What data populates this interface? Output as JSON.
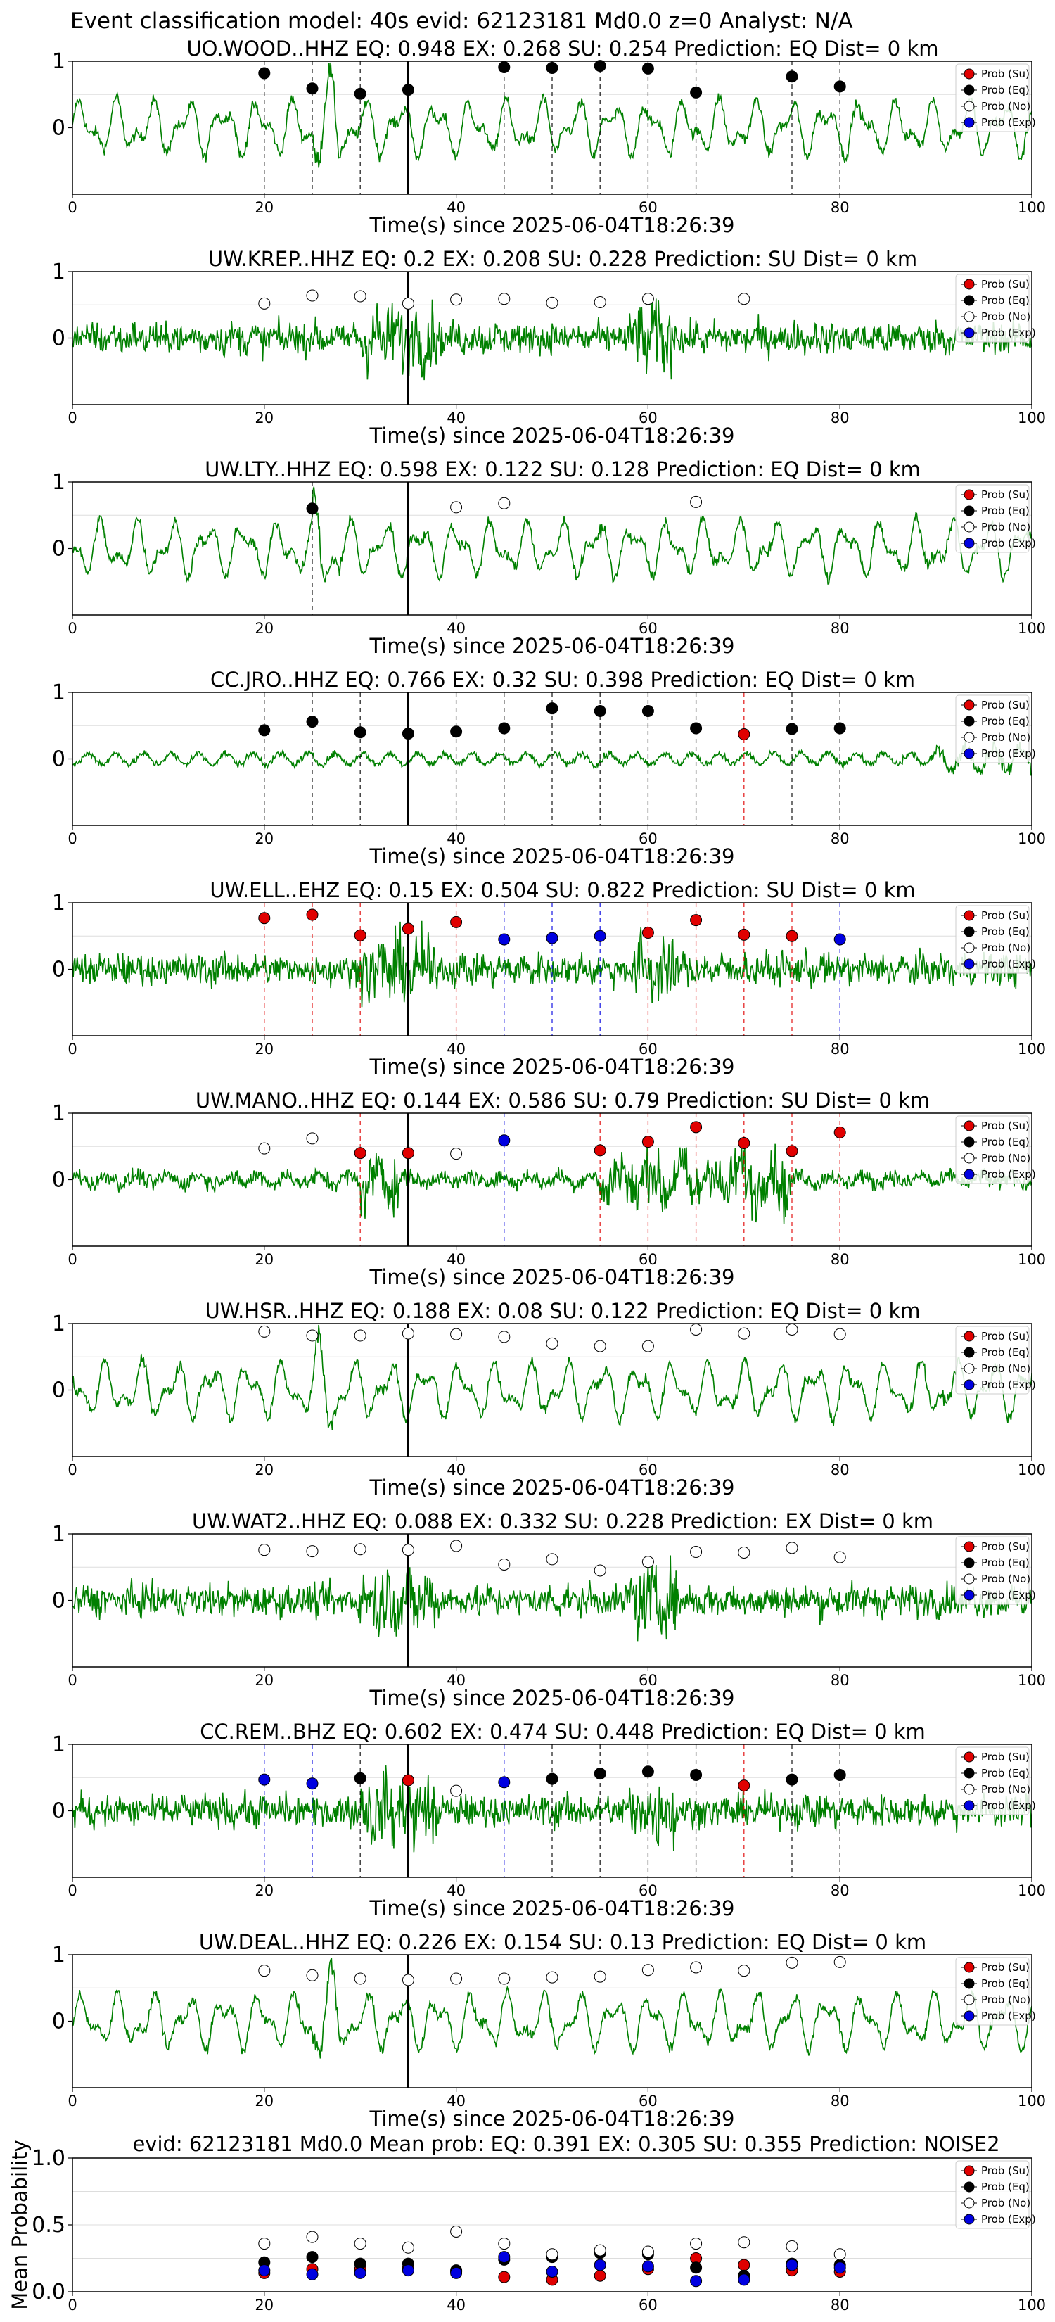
{
  "figure_title": "Event classification model: 40s evid: 62123181 Md0.0 z=0 Analyst: N/A",
  "legend_labels": [
    "Prob (Su)",
    "Prob (Eq)",
    "Prob (No)",
    "Prob (Exp)"
  ],
  "colors": {
    "su": "#e00000",
    "eq": "#000000",
    "no": "#ffffff",
    "exp": "#0000e0",
    "trace": "#008000",
    "grid": "#dddddd"
  },
  "chart_data": [
    {
      "type": "line",
      "title": "UO.WOOD..HHZ    EQ: 0.948   EX: 0.268   SU: 0.254   Prediction: EQ    Dist= 0 km",
      "xlabel": "Time(s) since 2025-06-04T18:26:39",
      "xlim": [
        0,
        100
      ],
      "ylim": [
        -1,
        1
      ],
      "x_ticks": [
        "0",
        "20",
        "40",
        "60",
        "80",
        "100"
      ],
      "y_ticks": [
        "1",
        "0"
      ],
      "pick_time": 35,
      "trace_style": "lowfreq",
      "windows": [
        {
          "t": 20,
          "cls": "eq",
          "p": 0.82
        },
        {
          "t": 25,
          "cls": "eq",
          "p": 0.59
        },
        {
          "t": 30,
          "cls": "eq",
          "p": 0.51
        },
        {
          "t": 35,
          "cls": "eq",
          "p": 0.57
        },
        {
          "t": 45,
          "cls": "eq",
          "p": 0.91
        },
        {
          "t": 50,
          "cls": "eq",
          "p": 0.9
        },
        {
          "t": 55,
          "cls": "eq",
          "p": 0.93
        },
        {
          "t": 60,
          "cls": "eq",
          "p": 0.89
        },
        {
          "t": 65,
          "cls": "eq",
          "p": 0.53
        },
        {
          "t": 75,
          "cls": "eq",
          "p": 0.77
        },
        {
          "t": 80,
          "cls": "eq",
          "p": 0.62
        }
      ]
    },
    {
      "type": "line",
      "title": "UW.KREP..HHZ   EQ: 0.2   EX: 0.208   SU: 0.228   Prediction: SU    Dist= 0 km",
      "xlabel": "Time(s) since 2025-06-04T18:26:39",
      "xlim": [
        0,
        100
      ],
      "ylim": [
        -1,
        1
      ],
      "x_ticks": [
        "0",
        "20",
        "40",
        "60",
        "80",
        "100"
      ],
      "y_ticks": [
        "1",
        "0"
      ],
      "pick_time": 35,
      "trace_style": "noisy",
      "windows": [
        {
          "t": 20,
          "cls": "no",
          "p": 0.52
        },
        {
          "t": 25,
          "cls": "no",
          "p": 0.64
        },
        {
          "t": 30,
          "cls": "no",
          "p": 0.63
        },
        {
          "t": 35,
          "cls": "no",
          "p": 0.52
        },
        {
          "t": 40,
          "cls": "no",
          "p": 0.58
        },
        {
          "t": 45,
          "cls": "no",
          "p": 0.59
        },
        {
          "t": 50,
          "cls": "no",
          "p": 0.53
        },
        {
          "t": 55,
          "cls": "no",
          "p": 0.54
        },
        {
          "t": 60,
          "cls": "no",
          "p": 0.59
        },
        {
          "t": 70,
          "cls": "no",
          "p": 0.59
        }
      ]
    },
    {
      "type": "line",
      "title": "UW.LTY..HHZ   EQ: 0.598   EX: 0.122   SU: 0.128   Prediction: EQ    Dist= 0 km",
      "xlabel": "Time(s) since 2025-06-04T18:26:39",
      "xlim": [
        0,
        100
      ],
      "ylim": [
        -1,
        1
      ],
      "x_ticks": [
        "0",
        "20",
        "40",
        "60",
        "80",
        "100"
      ],
      "y_ticks": [
        "1",
        "0"
      ],
      "pick_time": 35,
      "trace_style": "lowfreq",
      "windows": [
        {
          "t": 25,
          "cls": "eq",
          "p": 0.6
        },
        {
          "t": 40,
          "cls": "no",
          "p": 0.62
        },
        {
          "t": 45,
          "cls": "no",
          "p": 0.68
        },
        {
          "t": 65,
          "cls": "no",
          "p": 0.7
        }
      ]
    },
    {
      "type": "line",
      "title": "CC.JRO..HHZ   EQ: 0.766   EX: 0.32   SU: 0.398   Prediction: EQ    Dist= 0 km",
      "xlabel": "Time(s) since 2025-06-04T18:26:39",
      "xlim": [
        0,
        100
      ],
      "ylim": [
        -1,
        1
      ],
      "x_ticks": [
        "0",
        "20",
        "40",
        "60",
        "80",
        "100"
      ],
      "y_ticks": [
        "1",
        "0"
      ],
      "pick_time": 35,
      "trace_style": "quiet",
      "windows": [
        {
          "t": 20,
          "cls": "eq",
          "p": 0.43
        },
        {
          "t": 25,
          "cls": "eq",
          "p": 0.56
        },
        {
          "t": 30,
          "cls": "eq",
          "p": 0.4
        },
        {
          "t": 35,
          "cls": "eq",
          "p": 0.38
        },
        {
          "t": 40,
          "cls": "eq",
          "p": 0.41
        },
        {
          "t": 45,
          "cls": "eq",
          "p": 0.46
        },
        {
          "t": 50,
          "cls": "eq",
          "p": 0.76
        },
        {
          "t": 55,
          "cls": "eq",
          "p": 0.72
        },
        {
          "t": 60,
          "cls": "eq",
          "p": 0.72
        },
        {
          "t": 65,
          "cls": "eq",
          "p": 0.46
        },
        {
          "t": 70,
          "cls": "su",
          "p": 0.37
        },
        {
          "t": 75,
          "cls": "eq",
          "p": 0.45
        },
        {
          "t": 80,
          "cls": "eq",
          "p": 0.46
        }
      ]
    },
    {
      "type": "line",
      "title": "UW.ELL..EHZ   EQ: 0.15   EX: 0.504   SU: 0.822   Prediction: SU    Dist= 0 km",
      "xlabel": "Time(s) since 2025-06-04T18:26:39",
      "xlim": [
        0,
        100
      ],
      "ylim": [
        -1,
        1
      ],
      "x_ticks": [
        "0",
        "20",
        "40",
        "60",
        "80",
        "100"
      ],
      "y_ticks": [
        "1",
        "0"
      ],
      "pick_time": 35,
      "trace_style": "noisy",
      "windows": [
        {
          "t": 20,
          "cls": "su",
          "p": 0.77
        },
        {
          "t": 25,
          "cls": "su",
          "p": 0.82
        },
        {
          "t": 30,
          "cls": "su",
          "p": 0.51
        },
        {
          "t": 35,
          "cls": "su",
          "p": 0.61
        },
        {
          "t": 40,
          "cls": "su",
          "p": 0.71
        },
        {
          "t": 45,
          "cls": "exp",
          "p": 0.45
        },
        {
          "t": 50,
          "cls": "exp",
          "p": 0.47
        },
        {
          "t": 55,
          "cls": "exp",
          "p": 0.5
        },
        {
          "t": 60,
          "cls": "su",
          "p": 0.55
        },
        {
          "t": 65,
          "cls": "su",
          "p": 0.74
        },
        {
          "t": 70,
          "cls": "su",
          "p": 0.52
        },
        {
          "t": 75,
          "cls": "su",
          "p": 0.5
        },
        {
          "t": 80,
          "cls": "exp",
          "p": 0.45
        }
      ]
    },
    {
      "type": "line",
      "title": "UW.MANO..HHZ   EQ: 0.144   EX: 0.586   SU: 0.79   Prediction: SU    Dist= 0 km",
      "xlabel": "Time(s) since 2025-06-04T18:26:39",
      "xlim": [
        0,
        100
      ],
      "ylim": [
        -1,
        1
      ],
      "x_ticks": [
        "0",
        "20",
        "40",
        "60",
        "80",
        "100"
      ],
      "y_ticks": [
        "1",
        "0"
      ],
      "pick_time": 35,
      "trace_style": "burst",
      "windows": [
        {
          "t": 20,
          "cls": "no",
          "p": 0.47
        },
        {
          "t": 25,
          "cls": "no",
          "p": 0.62
        },
        {
          "t": 30,
          "cls": "su",
          "p": 0.4
        },
        {
          "t": 35,
          "cls": "su",
          "p": 0.4
        },
        {
          "t": 40,
          "cls": "no",
          "p": 0.39
        },
        {
          "t": 45,
          "cls": "exp",
          "p": 0.59
        },
        {
          "t": 55,
          "cls": "su",
          "p": 0.44
        },
        {
          "t": 60,
          "cls": "su",
          "p": 0.57
        },
        {
          "t": 65,
          "cls": "su",
          "p": 0.79
        },
        {
          "t": 70,
          "cls": "su",
          "p": 0.55
        },
        {
          "t": 75,
          "cls": "su",
          "p": 0.43
        },
        {
          "t": 80,
          "cls": "su",
          "p": 0.71
        }
      ]
    },
    {
      "type": "line",
      "title": "UW.HSR..HHZ   EQ: 0.188   EX: 0.08   SU: 0.122   Prediction: EQ    Dist= 0 km",
      "xlabel": "Time(s) since 2025-06-04T18:26:39",
      "xlim": [
        0,
        100
      ],
      "ylim": [
        -1,
        1
      ],
      "x_ticks": [
        "0",
        "20",
        "40",
        "60",
        "80",
        "100"
      ],
      "y_ticks": [
        "1",
        "0"
      ],
      "pick_time": 35,
      "trace_style": "lowfreq",
      "windows": [
        {
          "t": 20,
          "cls": "no",
          "p": 0.88
        },
        {
          "t": 25,
          "cls": "no",
          "p": 0.82
        },
        {
          "t": 30,
          "cls": "no",
          "p": 0.82
        },
        {
          "t": 35,
          "cls": "no",
          "p": 0.85
        },
        {
          "t": 40,
          "cls": "no",
          "p": 0.84
        },
        {
          "t": 45,
          "cls": "no",
          "p": 0.8
        },
        {
          "t": 50,
          "cls": "no",
          "p": 0.7
        },
        {
          "t": 55,
          "cls": "no",
          "p": 0.66
        },
        {
          "t": 60,
          "cls": "no",
          "p": 0.66
        },
        {
          "t": 65,
          "cls": "no",
          "p": 0.91
        },
        {
          "t": 70,
          "cls": "no",
          "p": 0.85
        },
        {
          "t": 75,
          "cls": "no",
          "p": 0.91
        },
        {
          "t": 80,
          "cls": "no",
          "p": 0.84
        }
      ]
    },
    {
      "type": "line",
      "title": "UW.WAT2..HHZ   EQ: 0.088   EX: 0.332   SU: 0.228   Prediction: EX    Dist= 0 km",
      "xlabel": "Time(s) since 2025-06-04T18:26:39",
      "xlim": [
        0,
        100
      ],
      "ylim": [
        -1,
        1
      ],
      "x_ticks": [
        "0",
        "20",
        "40",
        "60",
        "80",
        "100"
      ],
      "y_ticks": [
        "1",
        "0"
      ],
      "pick_time": 35,
      "trace_style": "noisy",
      "windows": [
        {
          "t": 20,
          "cls": "no",
          "p": 0.76
        },
        {
          "t": 25,
          "cls": "no",
          "p": 0.74
        },
        {
          "t": 30,
          "cls": "no",
          "p": 0.77
        },
        {
          "t": 35,
          "cls": "no",
          "p": 0.76
        },
        {
          "t": 40,
          "cls": "no",
          "p": 0.82
        },
        {
          "t": 45,
          "cls": "no",
          "p": 0.54
        },
        {
          "t": 50,
          "cls": "no",
          "p": 0.62
        },
        {
          "t": 55,
          "cls": "no",
          "p": 0.45
        },
        {
          "t": 60,
          "cls": "no",
          "p": 0.58
        },
        {
          "t": 65,
          "cls": "no",
          "p": 0.73
        },
        {
          "t": 70,
          "cls": "no",
          "p": 0.72
        },
        {
          "t": 75,
          "cls": "no",
          "p": 0.79
        },
        {
          "t": 80,
          "cls": "no",
          "p": 0.65
        }
      ]
    },
    {
      "type": "line",
      "title": "CC.REM..BHZ   EQ: 0.602   EX: 0.474   SU: 0.448   Prediction: EQ    Dist= 0 km",
      "xlabel": "Time(s) since 2025-06-04T18:26:39",
      "xlim": [
        0,
        100
      ],
      "ylim": [
        -1,
        1
      ],
      "x_ticks": [
        "0",
        "20",
        "40",
        "60",
        "80",
        "100"
      ],
      "y_ticks": [
        "1",
        "0"
      ],
      "pick_time": 35,
      "trace_style": "noisy",
      "windows": [
        {
          "t": 20,
          "cls": "exp",
          "p": 0.47
        },
        {
          "t": 25,
          "cls": "exp",
          "p": 0.41
        },
        {
          "t": 30,
          "cls": "eq",
          "p": 0.49
        },
        {
          "t": 35,
          "cls": "su",
          "p": 0.46
        },
        {
          "t": 40,
          "cls": "no",
          "p": 0.3
        },
        {
          "t": 45,
          "cls": "exp",
          "p": 0.43
        },
        {
          "t": 50,
          "cls": "eq",
          "p": 0.48
        },
        {
          "t": 55,
          "cls": "eq",
          "p": 0.56
        },
        {
          "t": 60,
          "cls": "eq",
          "p": 0.59
        },
        {
          "t": 65,
          "cls": "eq",
          "p": 0.54
        },
        {
          "t": 70,
          "cls": "su",
          "p": 0.38
        },
        {
          "t": 75,
          "cls": "eq",
          "p": 0.47
        },
        {
          "t": 80,
          "cls": "eq",
          "p": 0.54
        }
      ]
    },
    {
      "type": "line",
      "title": "UW.DEAL..HHZ   EQ: 0.226   EX: 0.154   SU: 0.13   Prediction: EQ    Dist= 0 km",
      "xlabel": "Time(s) since 2025-06-04T18:26:39",
      "xlim": [
        0,
        100
      ],
      "ylim": [
        -1,
        1
      ],
      "x_ticks": [
        "0",
        "20",
        "40",
        "60",
        "80",
        "100"
      ],
      "y_ticks": [
        "1",
        "0"
      ],
      "pick_time": 35,
      "trace_style": "lowfreq",
      "windows": [
        {
          "t": 20,
          "cls": "no",
          "p": 0.76
        },
        {
          "t": 25,
          "cls": "no",
          "p": 0.69
        },
        {
          "t": 30,
          "cls": "no",
          "p": 0.64
        },
        {
          "t": 35,
          "cls": "no",
          "p": 0.62
        },
        {
          "t": 40,
          "cls": "no",
          "p": 0.64
        },
        {
          "t": 45,
          "cls": "no",
          "p": 0.64
        },
        {
          "t": 50,
          "cls": "no",
          "p": 0.66
        },
        {
          "t": 55,
          "cls": "no",
          "p": 0.67
        },
        {
          "t": 60,
          "cls": "no",
          "p": 0.77
        },
        {
          "t": 65,
          "cls": "no",
          "p": 0.81
        },
        {
          "t": 70,
          "cls": "no",
          "p": 0.76
        },
        {
          "t": 75,
          "cls": "no",
          "p": 0.88
        },
        {
          "t": 80,
          "cls": "no",
          "p": 0.89
        }
      ]
    },
    {
      "type": "scatter",
      "title": "evid: 62123181  Md0.0   Mean prob:   EQ: 0.391   EX: 0.305   SU: 0.355   Prediction: NOISE2",
      "ylabel": "Mean Probability",
      "xlim": [
        0,
        100
      ],
      "ylim": [
        0,
        1
      ],
      "x_ticks": [
        "0",
        "20",
        "40",
        "60",
        "80",
        "100"
      ],
      "y_ticks": [
        "1.0",
        "0.5",
        "0.0"
      ],
      "x": [
        20,
        25,
        30,
        35,
        40,
        45,
        50,
        55,
        60,
        65,
        70,
        75,
        80
      ],
      "series": [
        {
          "name": "Prob (Su)",
          "key": "su",
          "values": [
            0.14,
            0.17,
            0.17,
            0.18,
            0.15,
            0.11,
            0.09,
            0.12,
            0.17,
            0.25,
            0.2,
            0.16,
            0.15
          ]
        },
        {
          "name": "Prob (Eq)",
          "key": "eq",
          "values": [
            0.22,
            0.26,
            0.21,
            0.21,
            0.16,
            0.24,
            0.26,
            0.29,
            0.28,
            0.18,
            0.12,
            0.21,
            0.2
          ]
        },
        {
          "name": "Prob (No)",
          "key": "no",
          "values": [
            0.36,
            0.41,
            0.36,
            0.33,
            0.45,
            0.36,
            0.28,
            0.31,
            0.3,
            0.36,
            0.37,
            0.34,
            0.28
          ]
        },
        {
          "name": "Prob (Exp)",
          "key": "exp",
          "values": [
            0.16,
            0.13,
            0.14,
            0.16,
            0.14,
            0.26,
            0.15,
            0.2,
            0.19,
            0.08,
            0.09,
            0.2,
            0.18
          ]
        }
      ]
    }
  ]
}
